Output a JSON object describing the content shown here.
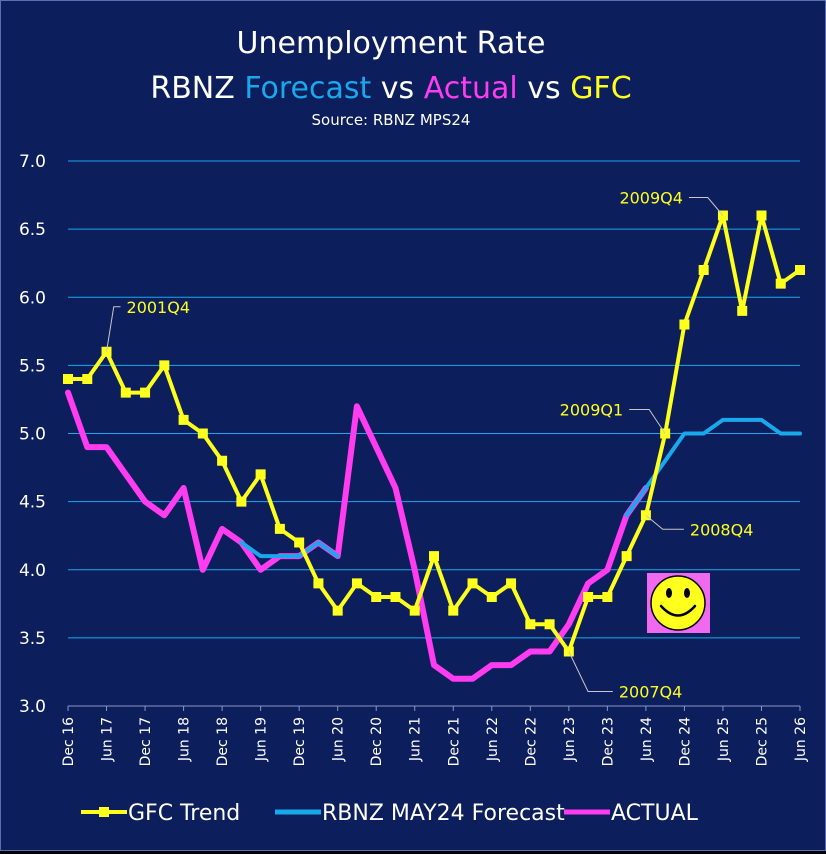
{
  "chart_data": {
    "type": "line",
    "title_parts": [
      {
        "text": "Unemployment Rate",
        "color": "#ffffff"
      },
      {
        "text": "RBNZ ",
        "color": "#ffffff"
      },
      {
        "text": "Forecast",
        "color": "#1aa8ec"
      },
      {
        "text": " vs ",
        "color": "#ffffff"
      },
      {
        "text": "Actual",
        "color": "#ff3cf0"
      },
      {
        "text": " vs ",
        "color": "#ffffff"
      },
      {
        "text": "GFC",
        "color": "#ffff1e"
      }
    ],
    "subtitle": "Source: RBNZ MPS24",
    "ylim": [
      3.0,
      7.0
    ],
    "y_ticks": [
      "3.0",
      "3.5",
      "4.0",
      "4.5",
      "5.0",
      "5.5",
      "6.0",
      "6.5",
      "7.0"
    ],
    "x_tick_labels": [
      "Dec 16",
      "Jun 17",
      "Dec 17",
      "Jun 18",
      "Dec 18",
      "Jun 19",
      "Dec 19",
      "Jun 20",
      "Dec 20",
      "Jun 21",
      "Dec 21",
      "Jun 22",
      "Dec 22",
      "Jun 23",
      "Dec 23",
      "Jun 24",
      "Dec 24",
      "Jun 25",
      "Dec 25",
      "Jun 26"
    ],
    "categories": [
      "Dec 16",
      "Mar 17",
      "Jun 17",
      "Sep 17",
      "Dec 17",
      "Mar 18",
      "Jun 18",
      "Sep 18",
      "Dec 18",
      "Mar 19",
      "Jun 19",
      "Sep 19",
      "Dec 19",
      "Mar 20",
      "Jun 20",
      "Sep 20",
      "Dec 20",
      "Mar 21",
      "Jun 21",
      "Sep 21",
      "Dec 21",
      "Mar 22",
      "Jun 22",
      "Sep 22",
      "Dec 22",
      "Mar 23",
      "Jun 23",
      "Sep 23",
      "Dec 23",
      "Mar 24",
      "Jun 24",
      "Sep 24",
      "Dec 24",
      "Mar 25",
      "Jun 25",
      "Sep 25",
      "Dec 25",
      "Mar 26",
      "Jun 26"
    ],
    "grid": true,
    "legend_position": "bottom",
    "series": [
      {
        "name": "GFC Trend",
        "color": "#ffff1e",
        "marker": "square",
        "values": [
          5.4,
          5.4,
          5.6,
          5.3,
          5.3,
          5.5,
          5.1,
          5.0,
          4.8,
          4.5,
          4.7,
          4.3,
          4.2,
          3.9,
          3.7,
          3.9,
          3.8,
          3.8,
          3.7,
          4.1,
          3.7,
          3.9,
          3.8,
          3.9,
          3.6,
          3.6,
          3.4,
          3.8,
          3.8,
          4.1,
          4.4,
          5.0,
          5.8,
          6.2,
          6.6,
          5.9,
          6.6,
          6.1,
          6.2
        ]
      },
      {
        "name": "RBNZ MAY24 Forecast",
        "color": "#1aa8ec",
        "marker": "none",
        "values": [
          null,
          null,
          null,
          null,
          null,
          null,
          null,
          null,
          null,
          4.2,
          4.1,
          4.1,
          4.1,
          4.2,
          4.1,
          null,
          null,
          null,
          null,
          null,
          null,
          null,
          null,
          null,
          null,
          null,
          null,
          null,
          null,
          4.4,
          4.6,
          4.8,
          5.0,
          5.0,
          5.1,
          5.1,
          5.1,
          5.0,
          5.0
        ]
      },
      {
        "name": "ACTUAL",
        "color": "#ff3cf0",
        "marker": "none",
        "values": [
          5.3,
          4.9,
          4.9,
          4.7,
          4.5,
          4.4,
          4.6,
          4.0,
          4.3,
          4.2,
          4.0,
          4.1,
          4.1,
          4.2,
          4.1,
          5.2,
          4.9,
          4.6,
          4.0,
          3.3,
          3.2,
          3.2,
          3.3,
          3.3,
          3.4,
          3.4,
          3.6,
          3.9,
          4.0,
          4.4,
          4.6,
          null,
          null,
          null,
          null,
          null,
          null,
          null,
          null
        ]
      }
    ],
    "annotations": [
      {
        "text": "2001Q4",
        "point_index": 2
      },
      {
        "text": "2009Q4",
        "point_index": 34
      },
      {
        "text": "2009Q1",
        "point_index": 31
      },
      {
        "text": "2008Q4",
        "point_index": 30
      },
      {
        "text": "2007Q4",
        "point_index": 26
      }
    ]
  },
  "icons": {
    "smiley": "smiley-face-icon"
  }
}
